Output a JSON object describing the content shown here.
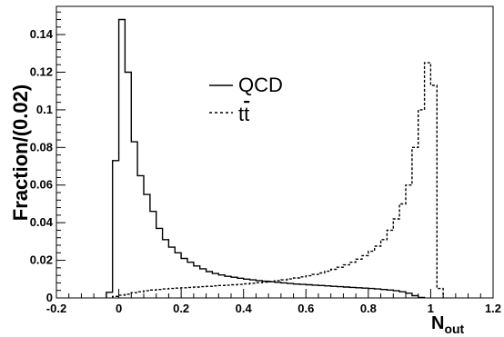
{
  "chart_data": {
    "type": "histogram",
    "title": "",
    "xlabel": "N",
    "xlabel_subscript": "out",
    "ylabel": "Fraction/(0.02)",
    "xlim": [
      -0.2,
      1.2
    ],
    "ylim": [
      0,
      0.155
    ],
    "xticks": [
      "-0.2",
      "0",
      "0.2",
      "0.4",
      "0.6",
      "0.8",
      "1",
      "1.2"
    ],
    "yticks": [
      "0",
      "0.02",
      "0.04",
      "0.06",
      "0.08",
      "0.1",
      "0.12",
      "0.14"
    ],
    "bin_width": 0.02,
    "legend_placement": "top-center",
    "grid": false,
    "series": [
      {
        "name": "QCD",
        "legend_label": "QCD",
        "line_style": "solid",
        "bin_start": -0.04,
        "values": [
          0.003,
          0.073,
          0.148,
          0.12,
          0.083,
          0.065,
          0.055,
          0.046,
          0.037,
          0.031,
          0.027,
          0.024,
          0.021,
          0.019,
          0.017,
          0.0155,
          0.014,
          0.013,
          0.0122,
          0.0115,
          0.011,
          0.0105,
          0.01,
          0.0096,
          0.0092,
          0.0089,
          0.0086,
          0.0083,
          0.008,
          0.0077,
          0.0074,
          0.0072,
          0.007,
          0.0068,
          0.0066,
          0.0064,
          0.0062,
          0.006,
          0.0058,
          0.0056,
          0.0054,
          0.0052,
          0.005,
          0.0048,
          0.0045,
          0.0042,
          0.0038,
          0.0033,
          0.0025,
          0.0012,
          0.0003
        ]
      },
      {
        "name": "tt",
        "legend_label": "t",
        "legend_label_overline": "t",
        "line_style": "dashed",
        "bin_start": -0.02,
        "values": [
          0.0008,
          0.0015,
          0.002,
          0.0028,
          0.0033,
          0.0038,
          0.0042,
          0.0045,
          0.0048,
          0.005,
          0.0052,
          0.0054,
          0.0056,
          0.0058,
          0.006,
          0.0062,
          0.0064,
          0.0066,
          0.0068,
          0.007,
          0.0072,
          0.0075,
          0.0078,
          0.0081,
          0.0084,
          0.0088,
          0.0092,
          0.0096,
          0.0101,
          0.0106,
          0.0112,
          0.0118,
          0.0125,
          0.0133,
          0.0142,
          0.0152,
          0.0163,
          0.0176,
          0.019,
          0.0206,
          0.0225,
          0.0248,
          0.0275,
          0.031,
          0.036,
          0.042,
          0.05,
          0.06,
          0.08,
          0.1,
          0.125,
          0.113,
          0.005
        ]
      }
    ]
  }
}
